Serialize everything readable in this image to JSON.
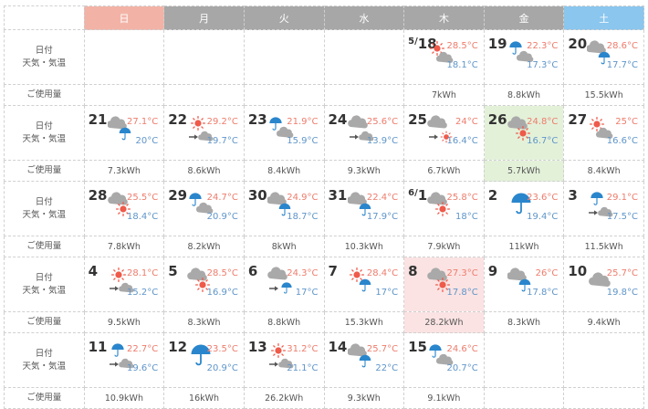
{
  "header": {
    "days": [
      "日",
      "月",
      "火",
      "水",
      "木",
      "金",
      "土"
    ]
  },
  "labels": {
    "date_weather": [
      "日付",
      "天気・気温"
    ],
    "usage": "ご使用量"
  },
  "colors": {
    "sunday": "#f2b3a6",
    "weekday": "#a7a7a7",
    "saturday": "#8ac6ee",
    "high_temp": "#ee7c6c",
    "low_temp": "#5f95c9",
    "peak_day": "#fbe3e3",
    "best_day": "#e3f1d9"
  },
  "weeks": [
    {
      "days": [
        null,
        null,
        null,
        null,
        {
          "month": "5/",
          "day": "18",
          "weather": "sun-cloud",
          "high": "28.5°C",
          "low": "18.1°C",
          "usage": "7kWh"
        },
        {
          "day": "19",
          "weather": "rain-cloud",
          "high": "22.3°C",
          "low": "17.3°C",
          "usage": "8.8kWh"
        },
        {
          "day": "20",
          "weather": "cloud-rain",
          "high": "28.6°C",
          "low": "17.7°C",
          "usage": "15.5kWh"
        }
      ]
    },
    {
      "days": [
        {
          "day": "21",
          "weather": "cloud-rain",
          "high": "27.1°C",
          "low": "20°C",
          "usage": "7.3kWh"
        },
        {
          "day": "22",
          "weather": "sun-then-cloud",
          "high": "29.2°C",
          "low": "19.7°C",
          "usage": "8.6kWh"
        },
        {
          "day": "23",
          "weather": "rain-cloud",
          "high": "21.9°C",
          "low": "15.9°C",
          "usage": "8.4kWh"
        },
        {
          "day": "24",
          "weather": "cloud-then-cloud",
          "high": "25.6°C",
          "low": "13.9°C",
          "usage": "9.3kWh"
        },
        {
          "day": "25",
          "weather": "cloud-then-sun",
          "high": "24°C",
          "low": "16.4°C",
          "usage": "6.7kWh"
        },
        {
          "day": "26",
          "weather": "cloud-sun",
          "high": "24.8°C",
          "low": "16.7°C",
          "usage": "5.7kWh",
          "highlight": "green"
        },
        {
          "day": "27",
          "weather": "sun-cloud",
          "high": "25°C",
          "low": "16.6°C",
          "usage": "8.4kWh"
        }
      ]
    },
    {
      "days": [
        {
          "day": "28",
          "weather": "cloud-sun",
          "high": "25.5°C",
          "low": "18.4°C",
          "usage": "7.8kWh"
        },
        {
          "day": "29",
          "weather": "rain-cloud",
          "high": "24.7°C",
          "low": "20.9°C",
          "usage": "8.2kWh"
        },
        {
          "day": "30",
          "weather": "cloud-rain",
          "high": "24.9°C",
          "low": "18.7°C",
          "usage": "8kWh"
        },
        {
          "day": "31",
          "weather": "cloud-rain",
          "high": "22.4°C",
          "low": "17.9°C",
          "usage": "10.3kWh"
        },
        {
          "month": "6/",
          "day": "1",
          "weather": "cloud-sun",
          "high": "25.8°C",
          "low": "18°C",
          "usage": "7.9kWh"
        },
        {
          "day": "2",
          "weather": "umbrella",
          "high": "23.6°C",
          "low": "19.4°C",
          "usage": "11kWh"
        },
        {
          "day": "3",
          "weather": "rain-then-cloud",
          "high": "29.1°C",
          "low": "17.5°C",
          "usage": "11.5kWh"
        }
      ]
    },
    {
      "days": [
        {
          "day": "4",
          "weather": "sun-then-cloud",
          "high": "28.1°C",
          "low": "15.2°C",
          "usage": "9.5kWh"
        },
        {
          "day": "5",
          "weather": "cloud-sun",
          "high": "28.5°C",
          "low": "16.9°C",
          "usage": "8.3kWh"
        },
        {
          "day": "6",
          "weather": "cloud-then-rain",
          "high": "24.3°C",
          "low": "17°C",
          "usage": "8.8kWh"
        },
        {
          "day": "7",
          "weather": "sun-rain",
          "high": "28.4°C",
          "low": "17°C",
          "usage": "15.3kWh"
        },
        {
          "day": "8",
          "weather": "cloud-sun",
          "high": "27.3°C",
          "low": "17.8°C",
          "usage": "28.2kWh",
          "highlight": "pink"
        },
        {
          "day": "9",
          "weather": "cloud-rain",
          "high": "26°C",
          "low": "17.8°C",
          "usage": "8.3kWh"
        },
        {
          "day": "10",
          "weather": "cloud",
          "high": "25.7°C",
          "low": "19.8°C",
          "usage": "9.4kWh"
        }
      ]
    },
    {
      "days": [
        {
          "day": "11",
          "weather": "rain-then-cloud",
          "high": "22.7°C",
          "low": "19.6°C",
          "usage": "10.9kWh"
        },
        {
          "day": "12",
          "weather": "umbrella",
          "high": "23.5°C",
          "low": "20.9°C",
          "usage": "16kWh"
        },
        {
          "day": "13",
          "weather": "sun-then-cloud",
          "high": "31.2°C",
          "low": "21.1°C",
          "usage": "26.2kWh"
        },
        {
          "day": "14",
          "weather": "cloud-rain",
          "high": "25.7°C",
          "low": "22°C",
          "usage": "9.3kWh"
        },
        {
          "day": "15",
          "weather": "rain-cloud",
          "high": "24.6°C",
          "low": "20.7°C",
          "usage": "9.1kWh"
        },
        null,
        null
      ]
    }
  ]
}
